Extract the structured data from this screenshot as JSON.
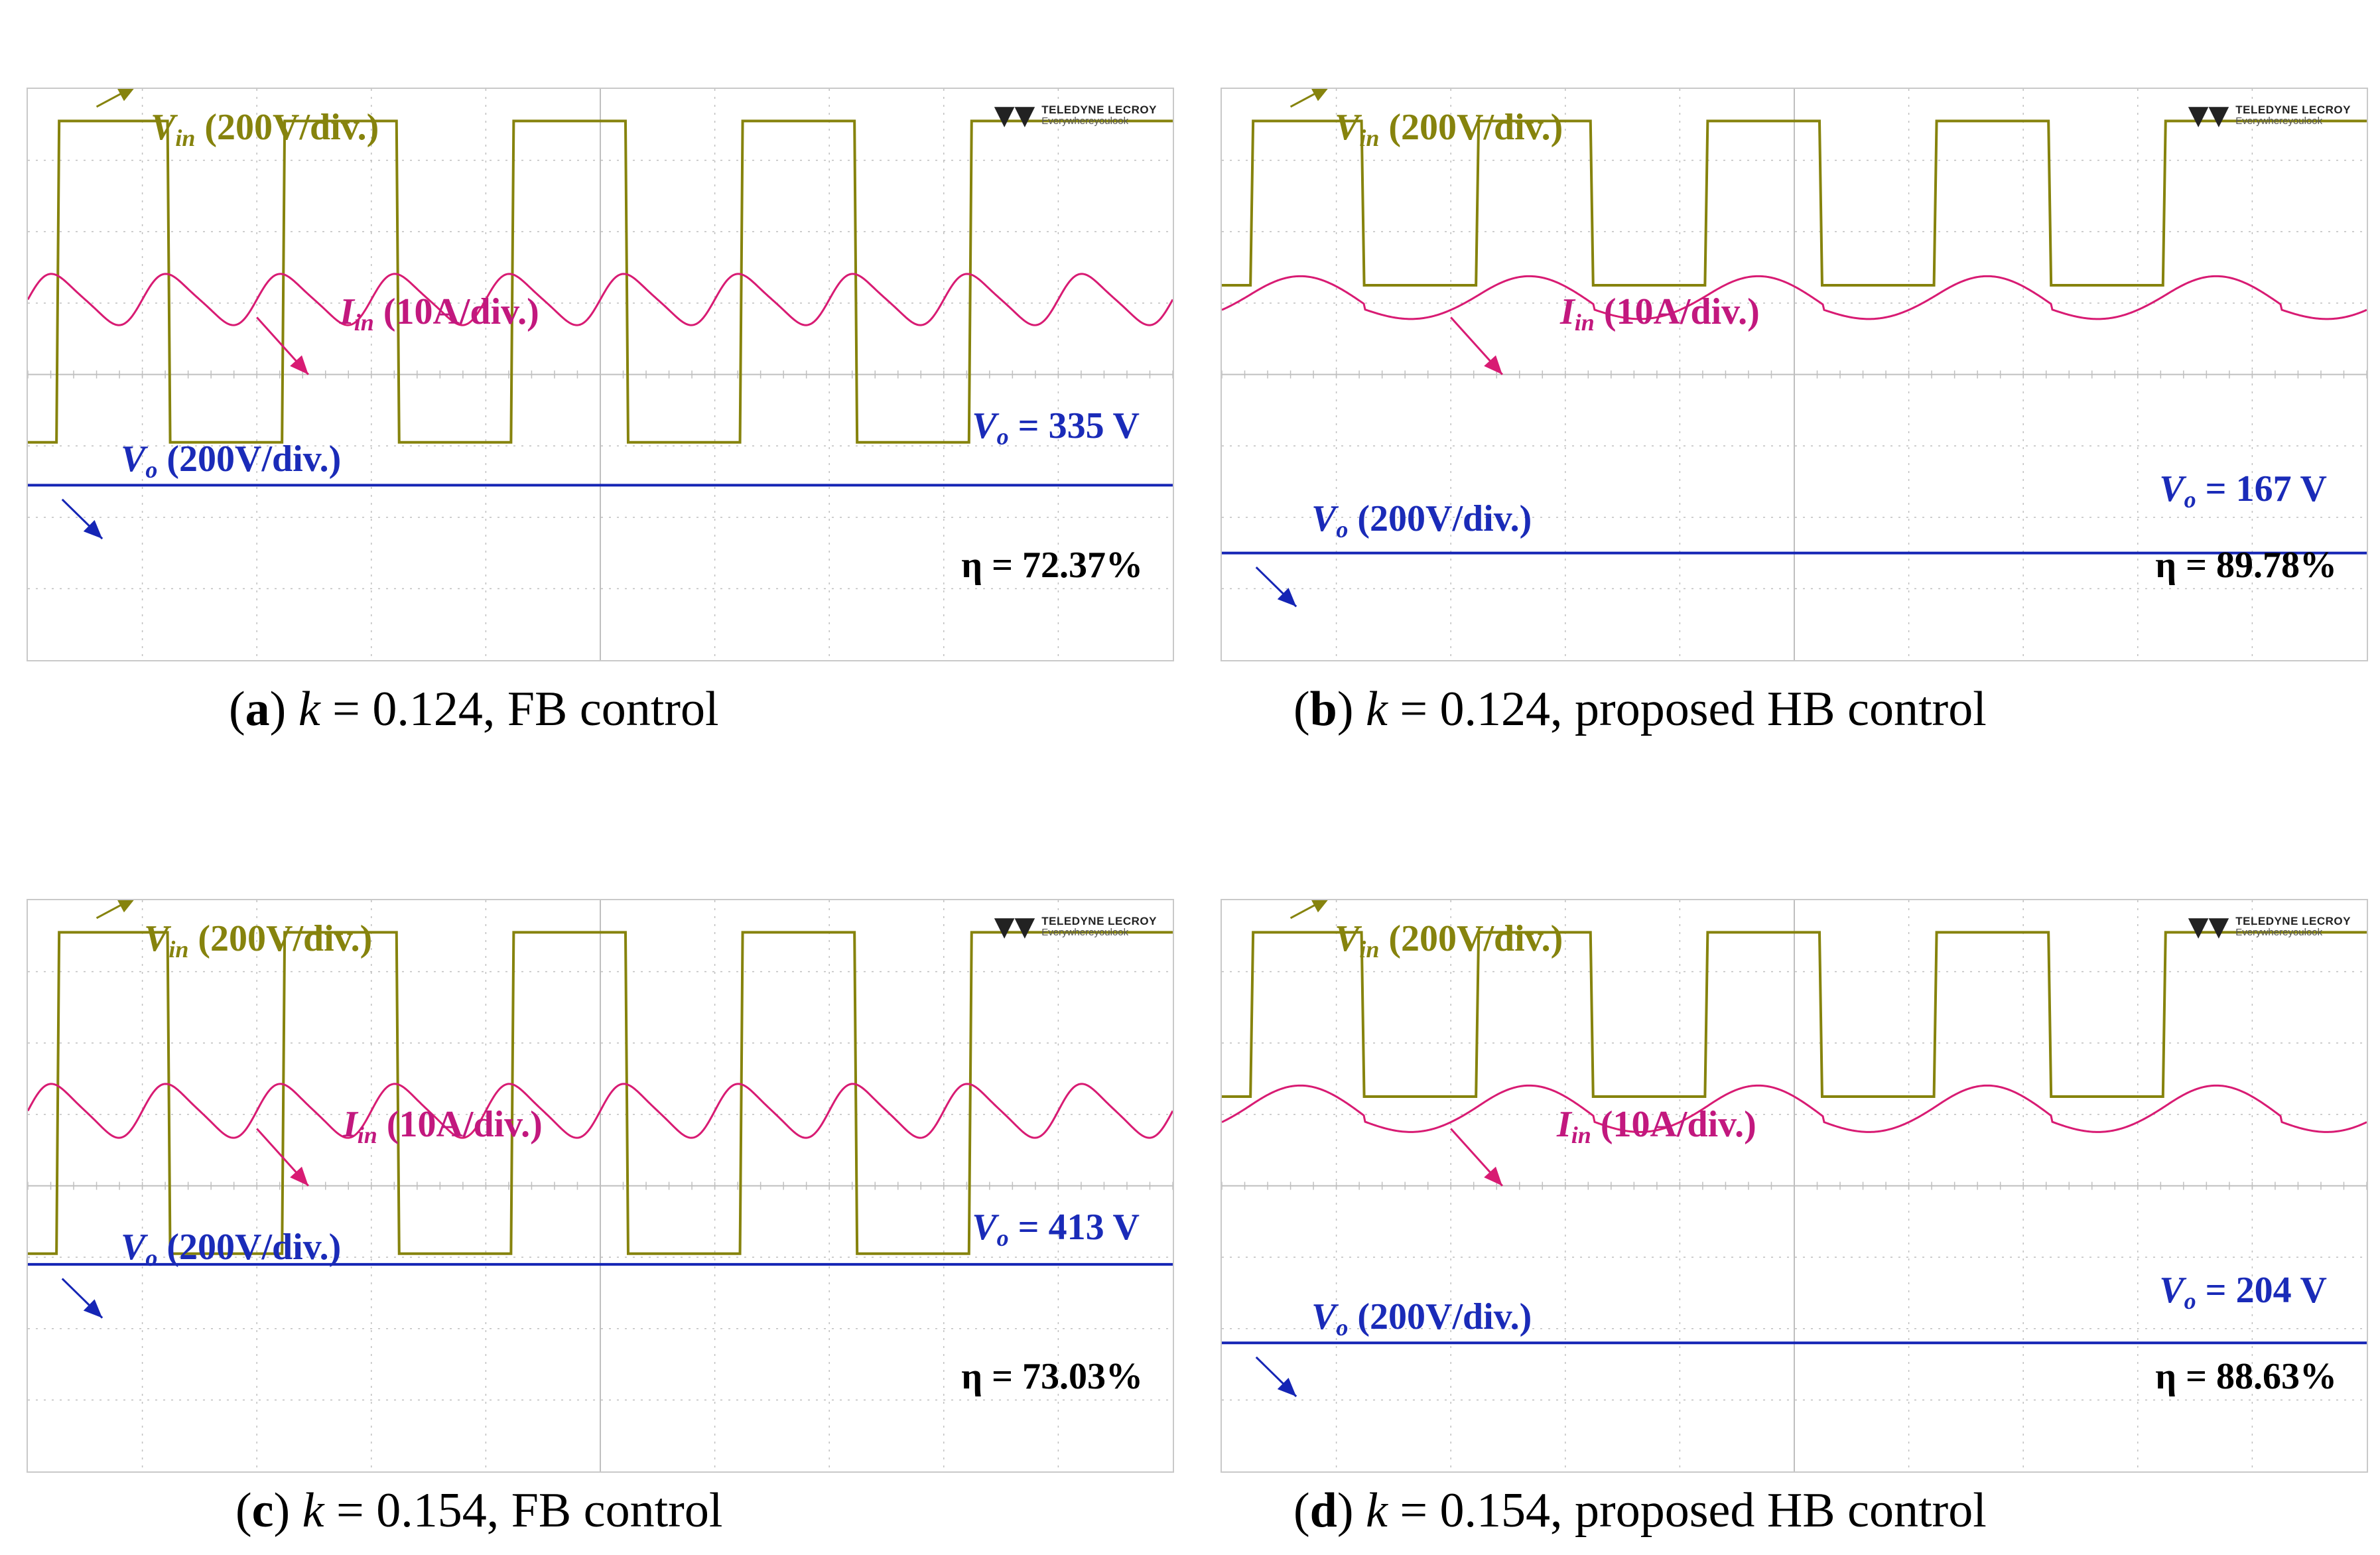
{
  "logo": {
    "line1": "TELEDYNE LECROY",
    "line2": "Everywhereyoulook"
  },
  "chart_data": [
    {
      "type": "line",
      "panel": "a",
      "caption": {
        "tag": "a",
        "k_label": "k",
        "k_value": "= 0.124, FB control"
      },
      "channels": {
        "vin_scale": "(200V/div.)",
        "iin_scale": "(10A/div.)",
        "vo_scale": "(200V/div.)"
      },
      "vin": {
        "high_div": 3.55,
        "low_div": -0.95,
        "rise_times_div": [
          0.25,
          2.22,
          4.22,
          6.22,
          8.22
        ],
        "fall_times_div": [
          1.22,
          3.22,
          5.22,
          7.22
        ]
      },
      "iin": {
        "offset_div": 1.05,
        "amplitude_div": 0.38,
        "mode": "fb"
      },
      "vo": {
        "level_div": -1.55
      },
      "annotations": {
        "vo_value": "= 335 V",
        "eta": "η = 72.37%"
      }
    },
    {
      "type": "line",
      "panel": "b",
      "caption": {
        "tag": "b",
        "k_label": "k",
        "k_value": "= 0.124, proposed HB control"
      },
      "channels": {
        "vin_scale": "(200V/div.)",
        "iin_scale": "(10A/div.)",
        "vo_scale": "(200V/div.)"
      },
      "vin": {
        "high_div": 3.55,
        "low_div": 1.25,
        "rise_times_div": [
          0.25,
          2.22,
          4.22,
          6.22,
          8.22
        ],
        "fall_times_div": [
          1.22,
          3.22,
          5.22,
          7.22
        ]
      },
      "iin": {
        "offset_div": 1.05,
        "amplitude_div": 0.35,
        "mode": "hb"
      },
      "vo": {
        "level_div": -2.5
      },
      "annotations": {
        "vo_value": "= 167 V",
        "eta": "η = 89.78%"
      }
    },
    {
      "type": "line",
      "panel": "c",
      "caption": {
        "tag": "c",
        "k_label": "k",
        "k_value": "= 0.154, FB control"
      },
      "channels": {
        "vin_scale": "(200V/div.)",
        "iin_scale": "(10A/div.)",
        "vo_scale": "(200V/div.)"
      },
      "vin": {
        "high_div": 3.55,
        "low_div": -0.95,
        "rise_times_div": [
          0.25,
          2.22,
          4.22,
          6.22,
          8.22
        ],
        "fall_times_div": [
          1.22,
          3.22,
          5.22,
          7.22
        ]
      },
      "iin": {
        "offset_div": 1.05,
        "amplitude_div": 0.4,
        "mode": "fb"
      },
      "vo": {
        "level_div": -1.1
      },
      "annotations": {
        "vo_value": "= 413 V",
        "eta": "η = 73.03%"
      }
    },
    {
      "type": "line",
      "panel": "d",
      "caption": {
        "tag": "d",
        "k_label": "k",
        "k_value": "= 0.154, proposed HB control"
      },
      "channels": {
        "vin_scale": "(200V/div.)",
        "iin_scale": "(10A/div.)",
        "vo_scale": "(200V/div.)"
      },
      "vin": {
        "high_div": 3.55,
        "low_div": 1.25,
        "rise_times_div": [
          0.25,
          2.22,
          4.22,
          6.22,
          8.22
        ],
        "fall_times_div": [
          1.22,
          3.22,
          5.22,
          7.22
        ]
      },
      "iin": {
        "offset_div": 1.05,
        "amplitude_div": 0.38,
        "mode": "hb"
      },
      "vo": {
        "level_div": -2.2
      },
      "annotations": {
        "vo_value": "= 204 V",
        "eta": "η = 88.63%"
      }
    }
  ],
  "colors": {
    "vin": "#86830d",
    "iin": "#d81b73",
    "vo": "#1525b5",
    "grid": "#bfbfbf"
  }
}
